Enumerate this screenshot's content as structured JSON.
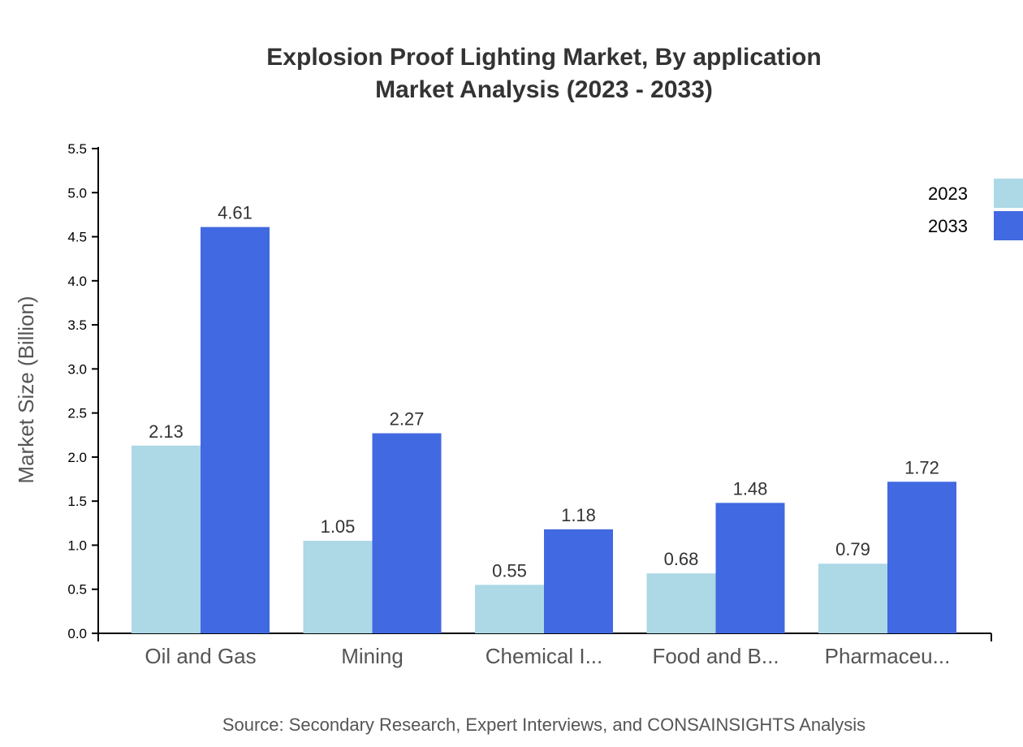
{
  "chart_data": {
    "type": "bar",
    "title": "Explosion Proof Lighting Market, By application",
    "subtitle": "Market Analysis (2023 - 2033)",
    "xlabel": "",
    "ylabel": "Market Size (Billion)",
    "ylim": [
      0,
      5.5
    ],
    "yticks": [
      "0.0",
      "0.5",
      "1.0",
      "1.5",
      "2.0",
      "2.5",
      "3.0",
      "3.5",
      "4.0",
      "4.5",
      "5.0",
      "5.5"
    ],
    "categories": [
      "Oil and Gas",
      "Mining",
      "Chemical I...",
      "Food and B...",
      "Pharmaceu..."
    ],
    "series": [
      {
        "name": "2023",
        "color": "#add8e6",
        "values": [
          2.13,
          1.05,
          0.55,
          0.68,
          0.79
        ]
      },
      {
        "name": "2033",
        "color": "#4169e1",
        "values": [
          4.61,
          2.27,
          1.18,
          1.48,
          1.72
        ]
      }
    ],
    "grid": false,
    "legend_placement": "top-right",
    "source": "Source: Secondary Research, Expert Interviews, and CONSAINSIGHTS Analysis"
  }
}
